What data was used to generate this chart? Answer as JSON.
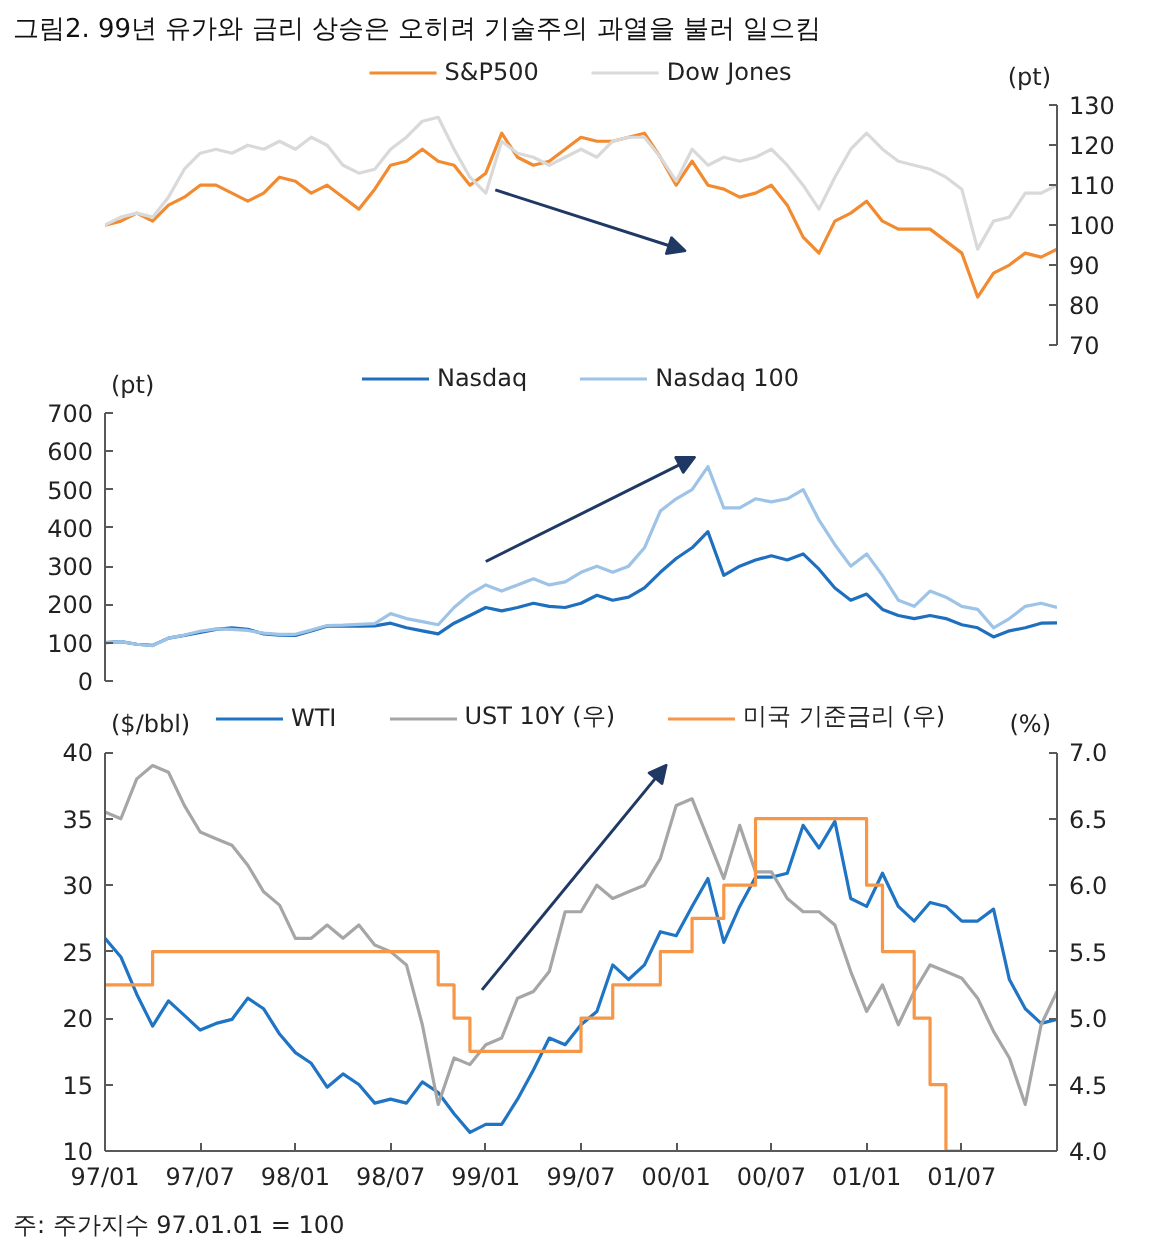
{
  "chart_data": [
    {
      "type": "line",
      "title": "그림2. 99년 유가와 금리 상승은 오히려 기술주의 과열을 불러 일으킴",
      "tick_labels": "y",
      "legend": "top",
      "categories": [
        null,
        null,
        null,
        null,
        null,
        null,
        null,
        null,
        null,
        null,
        null,
        null,
        null,
        null,
        null,
        null,
        null,
        null,
        null,
        null,
        null,
        null,
        null,
        null,
        null,
        null,
        null,
        null,
        null,
        null,
        null,
        null,
        null,
        null,
        null,
        null,
        null,
        null,
        null,
        null,
        null,
        null,
        null,
        null,
        null,
        null,
        null,
        null,
        null,
        null,
        null,
        null,
        null,
        null,
        null,
        null,
        null,
        null,
        null,
        null,
        null
      ],
      "ylabel": "(pt)",
      "ylim": [
        70,
        130
      ],
      "yticks": [
        70,
        80,
        90,
        100,
        110,
        120,
        130
      ],
      "series": [
        {
          "name": "S&P500",
          "color": "#f28a30",
          "values": [
            100,
            101,
            103,
            101,
            105,
            107,
            110,
            110,
            108,
            106,
            108,
            112,
            111,
            108,
            110,
            107,
            104,
            109,
            115,
            116,
            119,
            116,
            115,
            110,
            113,
            123,
            117,
            115,
            116,
            119,
            122,
            121,
            121,
            122,
            123,
            117,
            110,
            116,
            110,
            109,
            107,
            108,
            110,
            105,
            97,
            93,
            101,
            103,
            106,
            101,
            99,
            99,
            99,
            96,
            93,
            82,
            88,
            90,
            93,
            92,
            94
          ]
        },
        {
          "name": "Dow Jones",
          "color": "#d9d9d9",
          "values": [
            100,
            102,
            103,
            102,
            107,
            114,
            118,
            119,
            118,
            120,
            119,
            121,
            119,
            122,
            120,
            115,
            113,
            114,
            119,
            122,
            126,
            127,
            119,
            112,
            108,
            121,
            118,
            117,
            115,
            117,
            119,
            117,
            121,
            122,
            122,
            117,
            111,
            119,
            115,
            117,
            116,
            117,
            119,
            115,
            110,
            104,
            112,
            119,
            123,
            119,
            116,
            115,
            114,
            112,
            109,
            94,
            101,
            102,
            108,
            108,
            110
          ]
        }
      ]
    },
    {
      "type": "line",
      "tick_labels": "y",
      "legend": "top",
      "categories": [
        null,
        null,
        null,
        null,
        null,
        null,
        null,
        null,
        null,
        null,
        null,
        null,
        null,
        null,
        null,
        null,
        null,
        null,
        null,
        null,
        null,
        null,
        null,
        null,
        null,
        null,
        null,
        null,
        null,
        null,
        null,
        null,
        null,
        null,
        null,
        null,
        null,
        null,
        null,
        null,
        null,
        null,
        null,
        null,
        null,
        null,
        null,
        null,
        null,
        null,
        null,
        null,
        null,
        null,
        null,
        null,
        null,
        null,
        null,
        null,
        null
      ],
      "ylabel": "(pt)",
      "ylim": [
        0,
        700
      ],
      "yticks": [
        0,
        100,
        200,
        300,
        400,
        500,
        600,
        700
      ],
      "series": [
        {
          "name": "Nasdaq",
          "color": "#1f6fbf",
          "values": [
            100,
            103,
            96,
            93,
            112,
            119,
            127,
            135,
            139,
            135,
            123,
            120,
            119,
            131,
            143,
            144,
            143,
            144,
            151,
            139,
            131,
            123,
            151,
            171,
            192,
            183,
            192,
            203,
            195,
            192,
            203,
            224,
            211,
            219,
            243,
            284,
            320,
            348,
            390,
            276,
            300,
            316,
            327,
            316,
            332,
            292,
            243,
            211,
            227,
            187,
            171,
            163,
            171,
            163,
            147,
            139,
            115,
            131,
            139,
            151,
            152
          ]
        },
        {
          "name": "Nasdaq 100",
          "color": "#9dc3e6",
          "values": [
            100,
            103,
            96,
            92,
            112,
            120,
            130,
            136,
            135,
            132,
            125,
            122,
            122,
            133,
            145,
            146,
            148,
            150,
            176,
            163,
            155,
            147,
            192,
            227,
            251,
            235,
            251,
            267,
            251,
            259,
            284,
            300,
            284,
            300,
            348,
            444,
            476,
            500,
            560,
            452,
            452,
            476,
            468,
            476,
            500,
            420,
            356,
            300,
            332,
            276,
            211,
            195,
            235,
            219,
            195,
            187,
            139,
            163,
            195,
            203,
            192
          ]
        }
      ]
    },
    {
      "type": "line",
      "legend": "top",
      "categories": [
        "97/01",
        null,
        null,
        null,
        null,
        null,
        "97/07",
        null,
        null,
        null,
        null,
        null,
        "98/01",
        null,
        null,
        null,
        null,
        null,
        "98/07",
        null,
        null,
        null,
        null,
        null,
        "99/01",
        null,
        null,
        null,
        null,
        null,
        "99/07",
        null,
        null,
        null,
        null,
        null,
        "00/01",
        null,
        null,
        null,
        null,
        null,
        "00/07",
        null,
        null,
        null,
        null,
        null,
        "01/01",
        null,
        null,
        null,
        null,
        null,
        "01/07",
        null,
        null,
        null,
        null,
        null,
        null
      ],
      "ylabel": "($/bbl)",
      "ylim": [
        10,
        40
      ],
      "yticks": [
        10,
        15,
        20,
        25,
        30,
        35,
        40
      ],
      "y2label": "(%)",
      "y2lim": [
        4,
        7
      ],
      "y2ticks": [
        {
          "value": 4,
          "label": "4.0"
        },
        4.5,
        {
          "value": 5,
          "label": "5.0"
        },
        5.5,
        {
          "value": 6,
          "label": "6.0"
        },
        6.5,
        {
          "value": 7,
          "label": "7.0"
        }
      ],
      "series": [
        {
          "name": "WTI",
          "color": "#1f74c4",
          "values": [
            26,
            24.6,
            21.8,
            19.4,
            21.3,
            20.2,
            19.1,
            19.6,
            19.9,
            21.5,
            20.7,
            18.8,
            17.4,
            16.6,
            14.8,
            15.8,
            15.0,
            13.6,
            13.9,
            13.6,
            15.2,
            14.4,
            12.8,
            11.4,
            12.0,
            12.0,
            13.9,
            16.1,
            18.5,
            18.0,
            19.5,
            20.5,
            24.0,
            22.9,
            24.0,
            26.5,
            26.2,
            28.4,
            30.5,
            25.7,
            28.4,
            30.6,
            30.6,
            30.9,
            34.5,
            32.8,
            34.8,
            29.0,
            28.4,
            30.9,
            28.4,
            27.3,
            28.7,
            28.4,
            27.3,
            27.3,
            28.2,
            22.9,
            20.7,
            19.6,
            19.9
          ]
        },
        {
          "name": "UST 10Y (우)",
          "color": "#a6a6a6",
          "axis": "y2",
          "values": [
            6.55,
            6.5,
            6.8,
            6.9,
            6.85,
            6.6,
            6.4,
            6.35,
            6.3,
            6.15,
            5.95,
            5.85,
            5.6,
            5.6,
            5.7,
            5.6,
            5.7,
            5.55,
            5.5,
            5.4,
            4.95,
            4.35,
            4.7,
            4.65,
            4.8,
            4.85,
            5.15,
            5.2,
            5.35,
            5.8,
            5.8,
            6.0,
            5.9,
            5.95,
            6.0,
            6.2,
            6.6,
            6.65,
            6.35,
            6.05,
            6.45,
            6.1,
            6.1,
            5.9,
            5.8,
            5.8,
            5.7,
            5.35,
            5.05,
            5.25,
            4.95,
            5.2,
            5.4,
            5.35,
            5.3,
            5.15,
            4.9,
            4.7,
            4.35,
            4.95,
            5.2
          ]
        },
        {
          "name": "미국 기준금리 (우)",
          "type": "step",
          "color": "#f79646",
          "axis": "y2",
          "values": [
            5.25,
            5.25,
            5.25,
            5.25,
            5.5,
            5.5,
            5.5,
            5.5,
            5.5,
            5.5,
            5.5,
            5.5,
            5.5,
            5.5,
            5.5,
            5.5,
            5.5,
            5.5,
            5.5,
            5.5,
            5.5,
            5.5,
            5.25,
            5.0,
            4.75,
            4.75,
            4.75,
            4.75,
            4.75,
            4.75,
            4.75,
            5.0,
            5.0,
            5.25,
            5.25,
            5.25,
            5.5,
            5.5,
            5.75,
            5.75,
            6.0,
            6.0,
            6.5,
            6.5,
            6.5,
            6.5,
            6.5,
            6.5,
            6.5,
            6.0,
            5.5,
            5.5,
            5.0,
            4.5,
            4.0,
            null,
            null,
            null,
            null,
            null,
            null
          ]
        }
      ],
      "annotations": [
        "주: 주가지수 97.01.01 = 100"
      ]
    }
  ]
}
